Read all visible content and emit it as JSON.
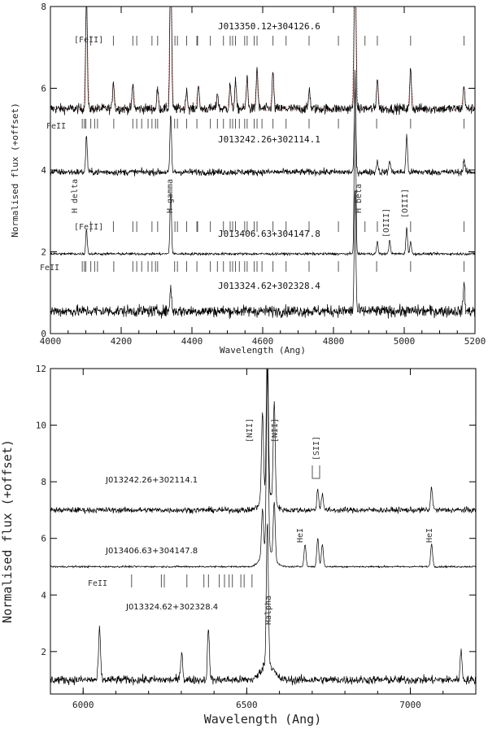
{
  "chart_data": [
    {
      "type": "line",
      "xlabel": "Wavelength (Ang)",
      "ylabel": "Normalised flux (+offset)",
      "xlim": [
        4000,
        5200
      ],
      "ylim": [
        0,
        8
      ],
      "xticks": [
        4000,
        4200,
        4400,
        4600,
        4800,
        5000,
        5200
      ],
      "yticks": [
        0,
        2,
        4,
        6,
        8
      ],
      "series": [
        {
          "name": "J013350.12+304126.6",
          "baseline": 5.5,
          "noise": 0.12,
          "color": "#000000",
          "lines": [
            [
              4102,
              3.0
            ],
            [
              4178,
              0.7
            ],
            [
              4233,
              0.6
            ],
            [
              4303,
              0.5
            ],
            [
              4340,
              4.5
            ],
            [
              4385,
              0.5
            ],
            [
              4418,
              0.6
            ],
            [
              4472,
              0.4
            ],
            [
              4508,
              0.6
            ],
            [
              4523,
              0.7
            ],
            [
              4556,
              0.8
            ],
            [
              4584,
              1.0
            ],
            [
              4629,
              0.9
            ],
            [
              4732,
              0.5
            ],
            [
              4861,
              5.0
            ],
            [
              4924,
              0.8
            ],
            [
              5018,
              1.0
            ],
            [
              5169,
              0.6
            ]
          ]
        },
        {
          "name": "J013242.26+302114.1",
          "baseline": 3.95,
          "noise": 0.08,
          "color": "#000000",
          "lines": [
            [
              4102,
              0.9
            ],
            [
              4340,
              1.4
            ],
            [
              4861,
              2.0
            ],
            [
              4924,
              0.3
            ],
            [
              4959,
              0.3
            ],
            [
              5007,
              0.9
            ],
            [
              5169,
              0.3
            ]
          ]
        },
        {
          "name": "J013406.63+304147.8",
          "baseline": 1.95,
          "noise": 0.03,
          "color": "#000000",
          "lines": [
            [
              4102,
              0.6
            ],
            [
              4340,
              1.5
            ],
            [
              4861,
              4.5
            ],
            [
              4924,
              0.3
            ],
            [
              4959,
              0.35
            ],
            [
              5007,
              0.65
            ],
            [
              5018,
              0.3
            ]
          ]
        },
        {
          "name": "J013324.62+302328.4",
          "baseline": 0.55,
          "noise": 0.14,
          "color": "#000000",
          "lines": [
            [
              4340,
              0.6
            ],
            [
              4861,
              3.0
            ],
            [
              5169,
              0.7
            ]
          ]
        }
      ],
      "texts": {
        "fe2_forbidden_top": "[FeII]",
        "fe2": "FeII",
        "h_delta": "H delta",
        "h_gamma": "H gamma",
        "h_beta": "H beta",
        "fe2_forbidden_mid": "[FeII]",
        "o3_a": "[OIII]",
        "o3_b": "[OIII]",
        "fe2_bottom": "FeII"
      }
    },
    {
      "type": "line",
      "xlabel": "Wavelength (Ang)",
      "ylabel": "Normalised flux (+offset)",
      "xlim": [
        5900,
        7200
      ],
      "ylim": [
        0.5,
        12
      ],
      "xticks": [
        6000,
        6500,
        7000
      ],
      "yticks": [
        2,
        4,
        6,
        8,
        10,
        12
      ],
      "series": [
        {
          "name": "J013242.26+302114.1",
          "baseline": 7.0,
          "noise": 0.1,
          "color": "#000000",
          "lines": [
            [
              6548,
              3.0
            ],
            [
              6563,
              5.5
            ],
            [
              6584,
              3.5
            ],
            [
              6717,
              0.7
            ],
            [
              6731,
              0.6
            ],
            [
              7065,
              0.8
            ]
          ]
        },
        {
          "name": "J013406.63+304147.8",
          "baseline": 5.0,
          "noise": 0.03,
          "color": "#000000",
          "lines": [
            [
              6548,
              1.6
            ],
            [
              6563,
              6.5
            ],
            [
              6584,
              2.0
            ],
            [
              6678,
              0.8
            ],
            [
              6717,
              1.0
            ],
            [
              6731,
              0.8
            ],
            [
              7065,
              0.8
            ]
          ]
        },
        {
          "name": "J013324.62+302328.4",
          "baseline": 1.0,
          "noise": 0.15,
          "color": "#000000",
          "lines": [
            [
              6050,
              1.8
            ],
            [
              6301,
              1.0
            ],
            [
              6383,
              1.8
            ],
            [
              6563,
              5.0
            ],
            [
              7155,
              1.0
            ]
          ]
        }
      ],
      "texts": {
        "n2_a": "[NII]",
        "n2_b": "[NII]",
        "s2": "[SII]",
        "he1_a": "HeI",
        "he1_b": "HeI",
        "fe2": "FeII",
        "halpha": "Halpha"
      }
    }
  ]
}
